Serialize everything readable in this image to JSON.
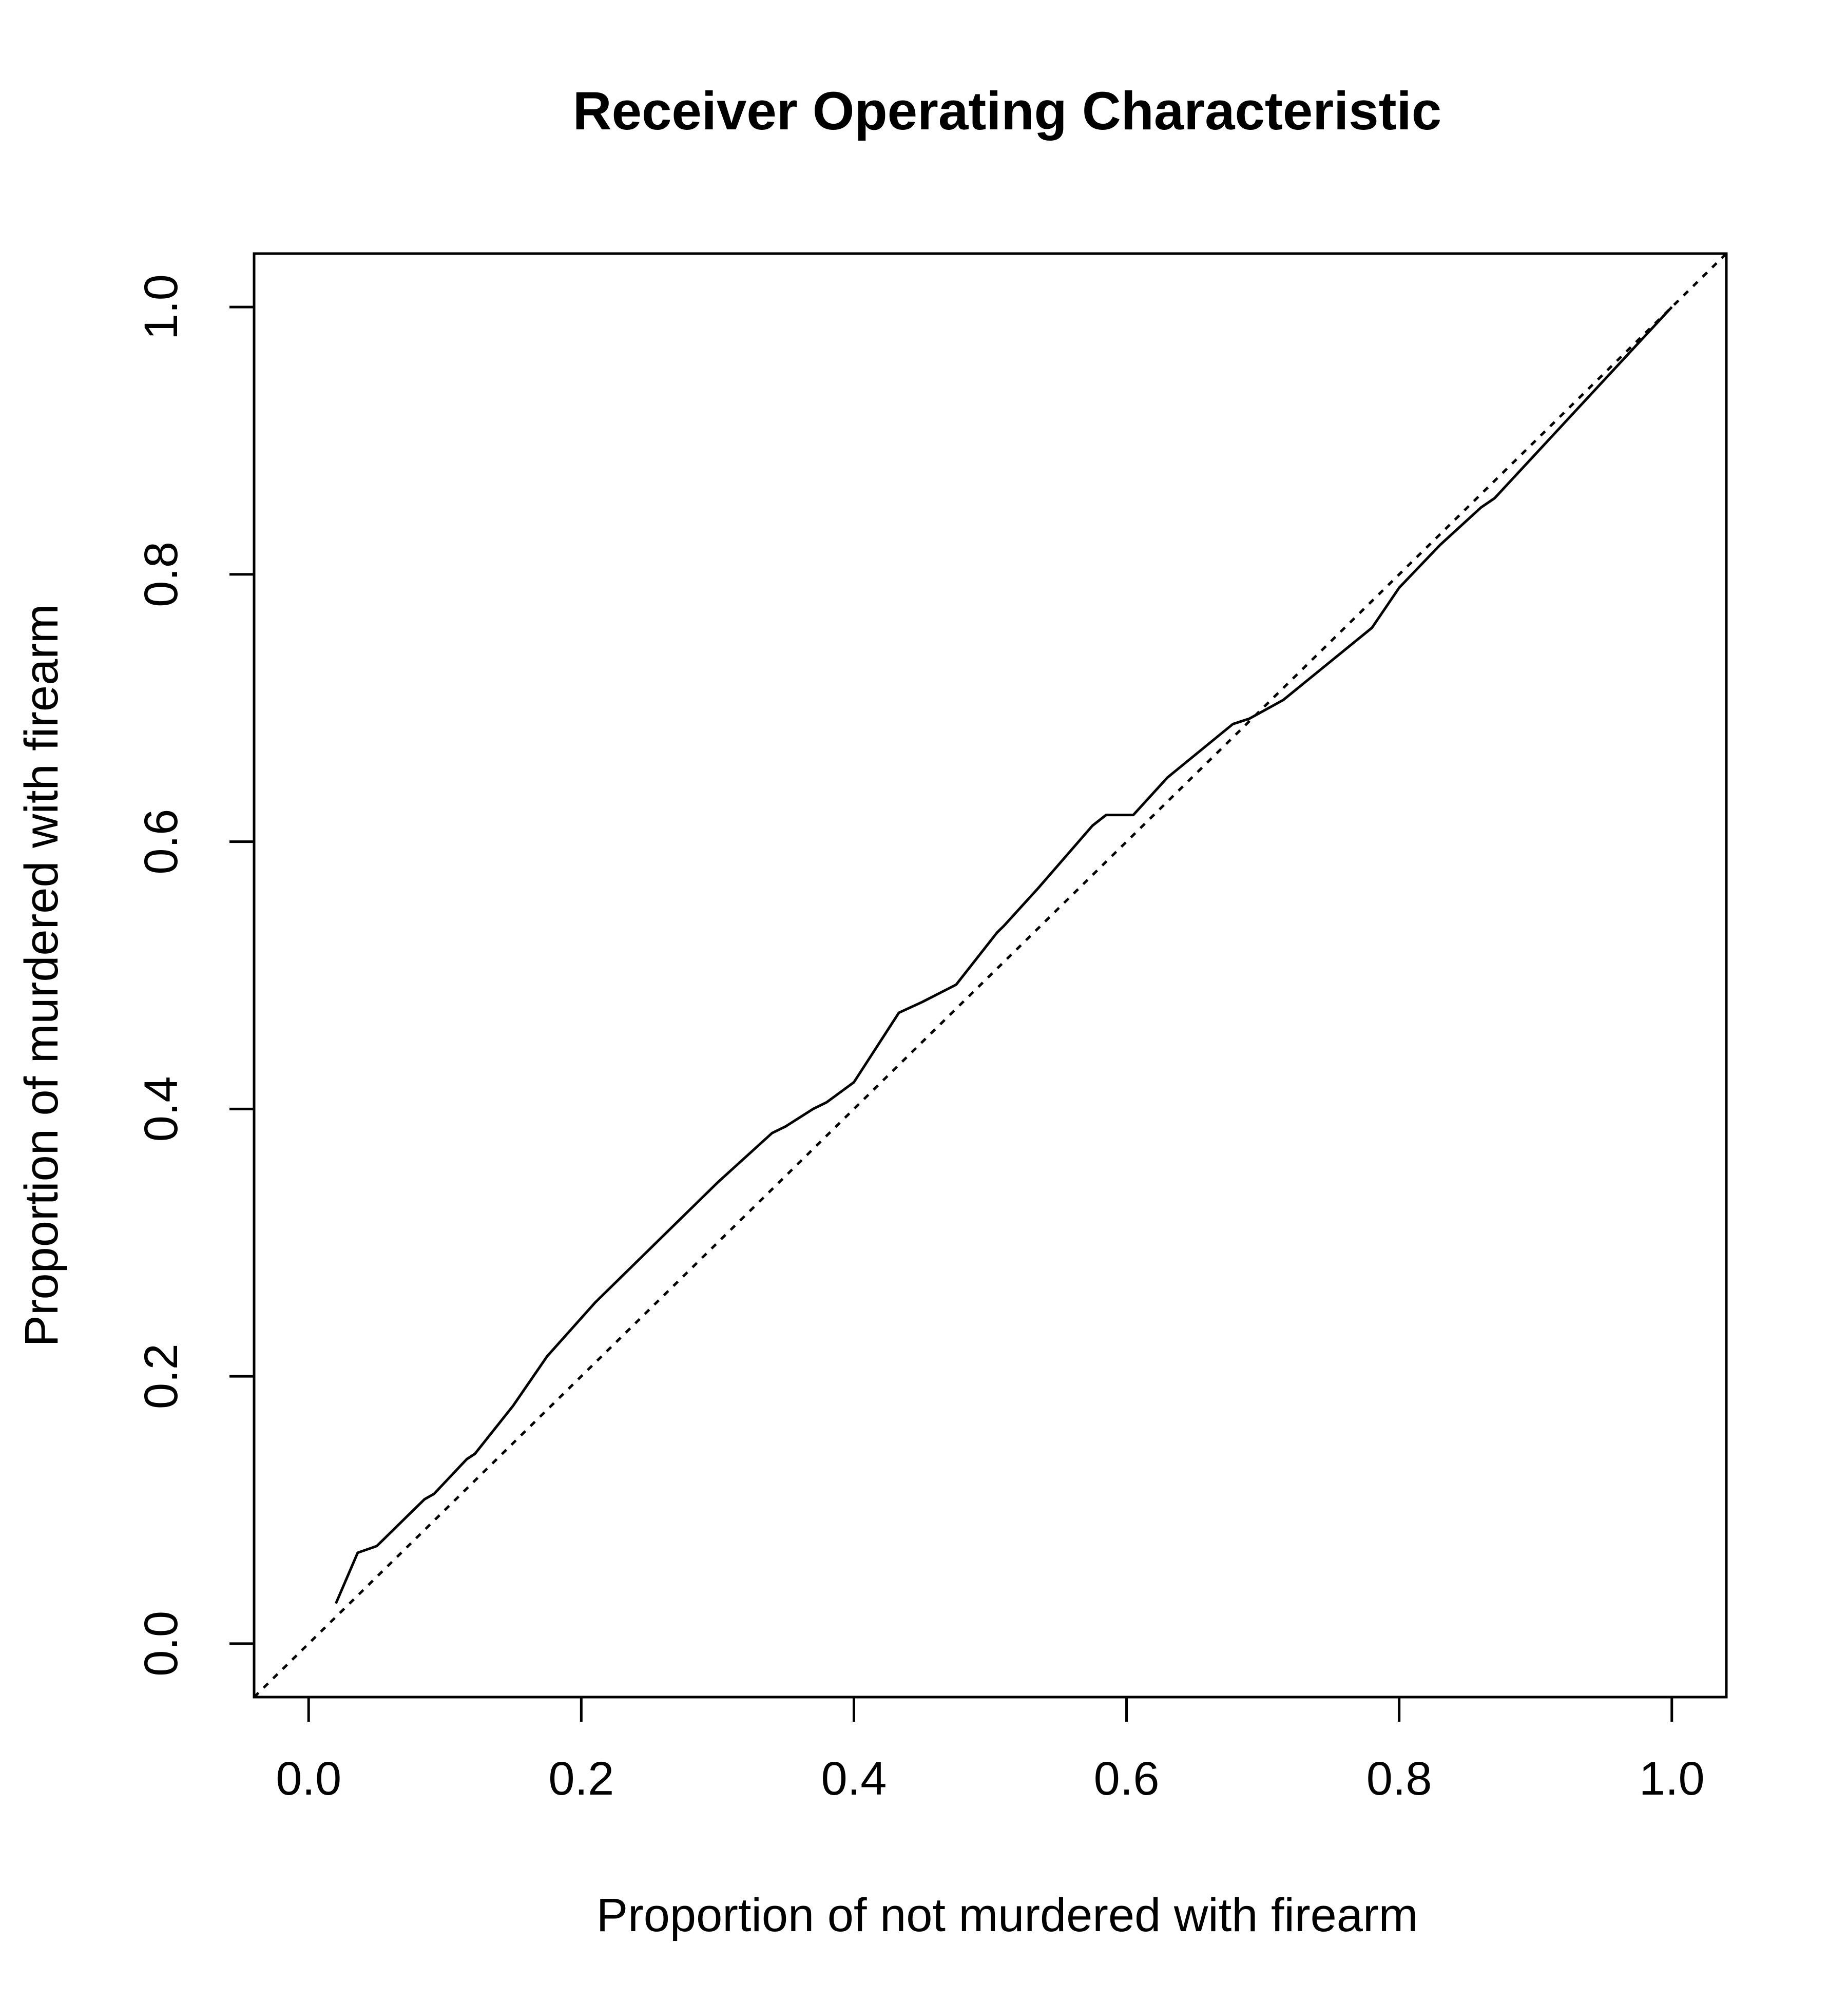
{
  "chart_data": {
    "type": "line",
    "title": "Receiver Operating Characteristic",
    "xlabel": "Proportion of not murdered with firearm",
    "ylabel": "Proportion of murdered with firearm",
    "xlim": [
      -0.04,
      1.04
    ],
    "ylim": [
      -0.04,
      1.04
    ],
    "x_ticks": [
      0.0,
      0.2,
      0.4,
      0.6,
      0.8,
      1.0
    ],
    "x_tick_labels": [
      "0.0",
      "0.2",
      "0.4",
      "0.6",
      "0.8",
      "1.0"
    ],
    "y_ticks": [
      0.0,
      0.2,
      0.4,
      0.6,
      0.8,
      1.0
    ],
    "y_tick_labels": [
      "0.0",
      "0.2",
      "0.4",
      "0.6",
      "0.8",
      "1.0"
    ],
    "grid": false,
    "series": [
      {
        "style": "solid",
        "x": [
          0.02,
          0.036,
          0.05,
          0.07,
          0.085,
          0.092,
          0.116,
          0.122,
          0.15,
          0.175,
          0.21,
          0.255,
          0.3,
          0.34,
          0.35,
          0.37,
          0.38,
          0.4,
          0.433,
          0.45,
          0.475,
          0.505,
          0.51,
          0.535,
          0.575,
          0.585,
          0.605,
          0.63,
          0.678,
          0.69,
          0.715,
          0.78,
          0.8,
          0.83,
          0.86,
          0.87,
          1.0
        ],
        "y": [
          0.03,
          0.068,
          0.073,
          0.093,
          0.108,
          0.112,
          0.138,
          0.142,
          0.178,
          0.215,
          0.255,
          0.3,
          0.345,
          0.382,
          0.387,
          0.4,
          0.405,
          0.42,
          0.472,
          0.48,
          0.493,
          0.532,
          0.537,
          0.565,
          0.612,
          0.62,
          0.62,
          0.648,
          0.688,
          0.692,
          0.706,
          0.76,
          0.79,
          0.822,
          0.85,
          0.857,
          1.0
        ]
      },
      {
        "style": "dotted",
        "x": [
          -0.04,
          1.04
        ],
        "y": [
          -0.04,
          1.04
        ]
      }
    ]
  }
}
